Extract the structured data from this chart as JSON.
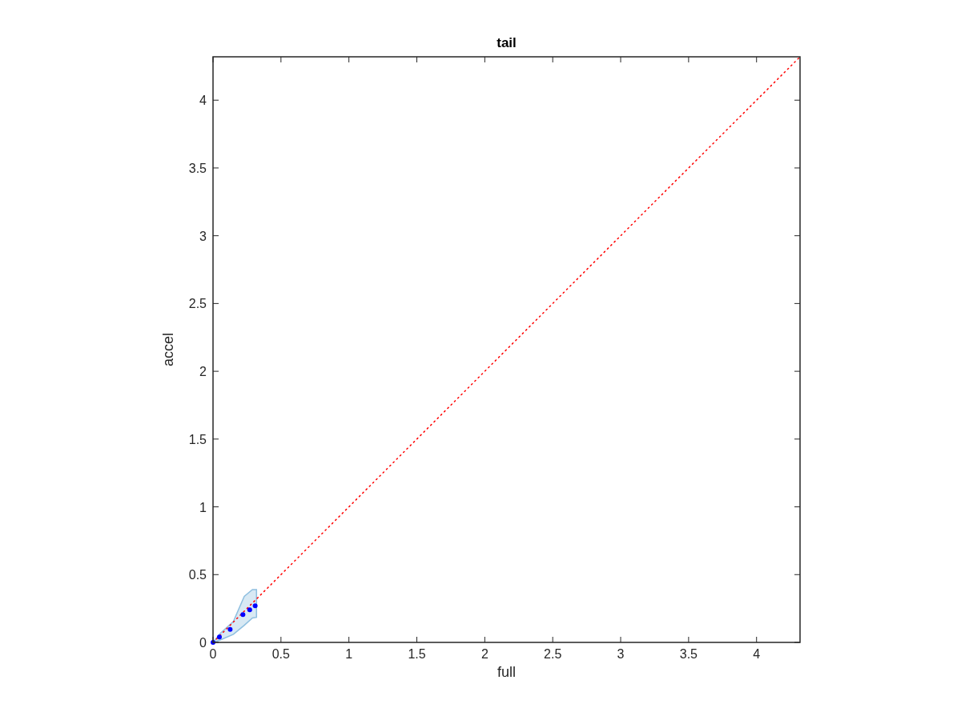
{
  "chart_data": {
    "type": "scatter",
    "title": "tail",
    "xlabel": "full",
    "ylabel": "accel",
    "xlim": [
      0,
      4.32
    ],
    "ylim": [
      0,
      4.32
    ],
    "xticks": [
      0,
      0.5,
      1,
      1.5,
      2,
      2.5,
      3,
      3.5,
      4
    ],
    "yticks": [
      0,
      0.5,
      1,
      1.5,
      2,
      2.5,
      3,
      3.5,
      4
    ],
    "grid": false,
    "series": [
      {
        "type": "area",
        "color": "#8ebfe0",
        "x": [
          0,
          0.053,
          0.15,
          0.23,
          0.29,
          0.32
        ],
        "values": [
          null,
          null,
          null,
          null,
          null,
          null
        ],
        "lower": [
          0,
          0.018,
          0.06,
          0.126,
          0.18,
          0.185
        ],
        "upper": [
          0,
          0.067,
          0.155,
          0.34,
          0.39,
          0.39
        ]
      },
      {
        "type": "line",
        "color": "#ff0000",
        "line_style": "dotted",
        "marker": "none",
        "x": [
          0,
          4.32
        ],
        "values": [
          0,
          4.32
        ]
      },
      {
        "color": "#0000ff",
        "marker": "circle",
        "x": [
          0,
          0.047,
          0.126,
          0.22,
          0.27,
          0.31
        ],
        "values": [
          0,
          0.04,
          0.096,
          0.205,
          0.24,
          0.27
        ]
      }
    ]
  }
}
